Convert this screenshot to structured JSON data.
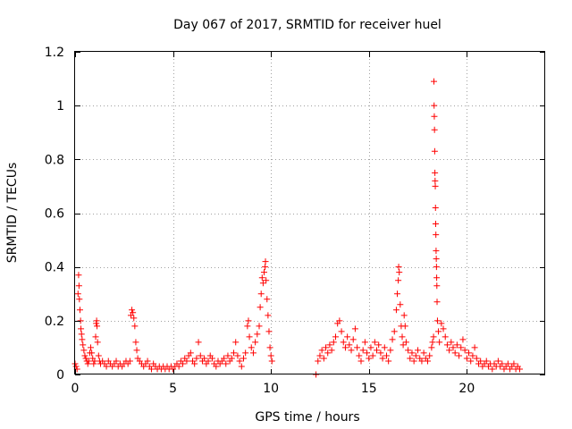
{
  "chart_data": {
    "type": "scatter",
    "title": "Day 067 of 2017, SRMTID for receiver huel",
    "xlabel": "GPS time / hours",
    "ylabel": "SRMTID / TECUs",
    "xlim": [
      0,
      24
    ],
    "ylim": [
      0,
      1.2
    ],
    "xticks": [
      0,
      5,
      10,
      15,
      20
    ],
    "yticks": [
      0,
      0.2,
      0.4,
      0.6,
      0.8,
      1,
      1.2
    ],
    "xtick_labels": [
      "0",
      "5",
      "10",
      "15",
      "20"
    ],
    "ytick_labels": [
      "0",
      "0.2",
      "0.4",
      "0.6",
      "0.8",
      "1",
      "1.2"
    ],
    "grid": true,
    "marker": "plus",
    "series_color": "#ff0000",
    "points": [
      [
        0.0,
        0.04
      ],
      [
        0.05,
        0.03
      ],
      [
        0.1,
        0.02
      ],
      [
        0.15,
        0.3
      ],
      [
        0.18,
        0.37
      ],
      [
        0.2,
        0.33
      ],
      [
        0.22,
        0.28
      ],
      [
        0.25,
        0.24
      ],
      [
        0.28,
        0.2
      ],
      [
        0.3,
        0.17
      ],
      [
        0.33,
        0.15
      ],
      [
        0.36,
        0.13
      ],
      [
        0.4,
        0.11
      ],
      [
        0.45,
        0.09
      ],
      [
        0.5,
        0.07
      ],
      [
        0.55,
        0.06
      ],
      [
        0.6,
        0.05
      ],
      [
        0.65,
        0.04
      ],
      [
        0.7,
        0.05
      ],
      [
        0.75,
        0.08
      ],
      [
        0.8,
        0.1
      ],
      [
        0.85,
        0.08
      ],
      [
        0.9,
        0.06
      ],
      [
        0.95,
        0.04
      ],
      [
        1.0,
        0.05
      ],
      [
        1.05,
        0.14
      ],
      [
        1.08,
        0.19
      ],
      [
        1.1,
        0.2
      ],
      [
        1.12,
        0.18
      ],
      [
        1.15,
        0.12
      ],
      [
        1.2,
        0.07
      ],
      [
        1.25,
        0.05
      ],
      [
        1.3,
        0.04
      ],
      [
        1.4,
        0.05
      ],
      [
        1.5,
        0.04
      ],
      [
        1.6,
        0.03
      ],
      [
        1.7,
        0.05
      ],
      [
        1.8,
        0.04
      ],
      [
        1.9,
        0.03
      ],
      [
        2.0,
        0.04
      ],
      [
        2.1,
        0.05
      ],
      [
        2.2,
        0.03
      ],
      [
        2.3,
        0.04
      ],
      [
        2.4,
        0.03
      ],
      [
        2.5,
        0.04
      ],
      [
        2.6,
        0.05
      ],
      [
        2.7,
        0.04
      ],
      [
        2.8,
        0.05
      ],
      [
        2.85,
        0.22
      ],
      [
        2.9,
        0.24
      ],
      [
        2.95,
        0.23
      ],
      [
        3.0,
        0.21
      ],
      [
        3.05,
        0.18
      ],
      [
        3.1,
        0.12
      ],
      [
        3.15,
        0.09
      ],
      [
        3.2,
        0.06
      ],
      [
        3.3,
        0.05
      ],
      [
        3.4,
        0.04
      ],
      [
        3.5,
        0.03
      ],
      [
        3.6,
        0.04
      ],
      [
        3.7,
        0.05
      ],
      [
        3.8,
        0.03
      ],
      [
        3.9,
        0.02
      ],
      [
        4.0,
        0.04
      ],
      [
        4.1,
        0.03
      ],
      [
        4.2,
        0.02
      ],
      [
        4.3,
        0.03
      ],
      [
        4.4,
        0.02
      ],
      [
        4.5,
        0.03
      ],
      [
        4.6,
        0.02
      ],
      [
        4.7,
        0.03
      ],
      [
        4.8,
        0.02
      ],
      [
        4.9,
        0.03
      ],
      [
        5.0,
        0.02
      ],
      [
        5.1,
        0.03
      ],
      [
        5.2,
        0.04
      ],
      [
        5.3,
        0.03
      ],
      [
        5.4,
        0.05
      ],
      [
        5.5,
        0.04
      ],
      [
        5.6,
        0.06
      ],
      [
        5.7,
        0.05
      ],
      [
        5.8,
        0.07
      ],
      [
        5.9,
        0.08
      ],
      [
        6.0,
        0.05
      ],
      [
        6.1,
        0.04
      ],
      [
        6.2,
        0.06
      ],
      [
        6.3,
        0.12
      ],
      [
        6.4,
        0.07
      ],
      [
        6.5,
        0.05
      ],
      [
        6.6,
        0.06
      ],
      [
        6.7,
        0.04
      ],
      [
        6.8,
        0.05
      ],
      [
        6.9,
        0.07
      ],
      [
        7.0,
        0.06
      ],
      [
        7.1,
        0.04
      ],
      [
        7.2,
        0.03
      ],
      [
        7.3,
        0.05
      ],
      [
        7.4,
        0.04
      ],
      [
        7.5,
        0.05
      ],
      [
        7.6,
        0.06
      ],
      [
        7.7,
        0.04
      ],
      [
        7.8,
        0.07
      ],
      [
        7.9,
        0.05
      ],
      [
        8.0,
        0.06
      ],
      [
        8.1,
        0.08
      ],
      [
        8.2,
        0.12
      ],
      [
        8.3,
        0.07
      ],
      [
        8.4,
        0.05
      ],
      [
        8.5,
        0.03
      ],
      [
        8.6,
        0.06
      ],
      [
        8.7,
        0.08
      ],
      [
        8.8,
        0.18
      ],
      [
        8.85,
        0.2
      ],
      [
        8.9,
        0.14
      ],
      [
        9.0,
        0.1
      ],
      [
        9.1,
        0.08
      ],
      [
        9.2,
        0.12
      ],
      [
        9.3,
        0.15
      ],
      [
        9.4,
        0.18
      ],
      [
        9.45,
        0.25
      ],
      [
        9.5,
        0.3
      ],
      [
        9.55,
        0.36
      ],
      [
        9.6,
        0.34
      ],
      [
        9.65,
        0.38
      ],
      [
        9.7,
        0.4
      ],
      [
        9.72,
        0.42
      ],
      [
        9.75,
        0.35
      ],
      [
        9.8,
        0.28
      ],
      [
        9.85,
        0.22
      ],
      [
        9.9,
        0.16
      ],
      [
        9.95,
        0.1
      ],
      [
        10.0,
        0.07
      ],
      [
        10.05,
        0.05
      ],
      [
        12.3,
        0.0
      ],
      [
        12.4,
        0.05
      ],
      [
        12.5,
        0.07
      ],
      [
        12.6,
        0.09
      ],
      [
        12.7,
        0.06
      ],
      [
        12.8,
        0.1
      ],
      [
        12.9,
        0.08
      ],
      [
        13.0,
        0.11
      ],
      [
        13.1,
        0.09
      ],
      [
        13.2,
        0.12
      ],
      [
        13.3,
        0.14
      ],
      [
        13.4,
        0.19
      ],
      [
        13.5,
        0.2
      ],
      [
        13.6,
        0.16
      ],
      [
        13.7,
        0.12
      ],
      [
        13.8,
        0.1
      ],
      [
        13.9,
        0.14
      ],
      [
        14.0,
        0.11
      ],
      [
        14.1,
        0.09
      ],
      [
        14.2,
        0.13
      ],
      [
        14.3,
        0.17
      ],
      [
        14.4,
        0.1
      ],
      [
        14.5,
        0.07
      ],
      [
        14.6,
        0.05
      ],
      [
        14.7,
        0.09
      ],
      [
        14.8,
        0.12
      ],
      [
        14.9,
        0.08
      ],
      [
        15.0,
        0.06
      ],
      [
        15.1,
        0.1
      ],
      [
        15.2,
        0.07
      ],
      [
        15.3,
        0.12
      ],
      [
        15.4,
        0.09
      ],
      [
        15.5,
        0.11
      ],
      [
        15.6,
        0.08
      ],
      [
        15.7,
        0.06
      ],
      [
        15.8,
        0.1
      ],
      [
        15.9,
        0.07
      ],
      [
        16.0,
        0.05
      ],
      [
        16.1,
        0.09
      ],
      [
        16.2,
        0.13
      ],
      [
        16.3,
        0.16
      ],
      [
        16.4,
        0.24
      ],
      [
        16.45,
        0.3
      ],
      [
        16.5,
        0.35
      ],
      [
        16.52,
        0.4
      ],
      [
        16.55,
        0.38
      ],
      [
        16.6,
        0.26
      ],
      [
        16.65,
        0.18
      ],
      [
        16.7,
        0.14
      ],
      [
        16.75,
        0.11
      ],
      [
        16.8,
        0.22
      ],
      [
        16.85,
        0.18
      ],
      [
        16.9,
        0.12
      ],
      [
        17.0,
        0.09
      ],
      [
        17.1,
        0.06
      ],
      [
        17.2,
        0.08
      ],
      [
        17.3,
        0.05
      ],
      [
        17.4,
        0.07
      ],
      [
        17.5,
        0.09
      ],
      [
        17.6,
        0.06
      ],
      [
        17.7,
        0.05
      ],
      [
        17.8,
        0.08
      ],
      [
        17.9,
        0.06
      ],
      [
        18.0,
        0.05
      ],
      [
        18.1,
        0.07
      ],
      [
        18.2,
        0.1
      ],
      [
        18.25,
        0.12
      ],
      [
        18.3,
        0.14
      ],
      [
        18.32,
        1.09
      ],
      [
        18.33,
        1.0
      ],
      [
        18.34,
        0.96
      ],
      [
        18.35,
        0.91
      ],
      [
        18.36,
        0.83
      ],
      [
        18.37,
        0.75
      ],
      [
        18.38,
        0.72
      ],
      [
        18.39,
        0.7
      ],
      [
        18.4,
        0.62
      ],
      [
        18.41,
        0.56
      ],
      [
        18.42,
        0.52
      ],
      [
        18.43,
        0.46
      ],
      [
        18.44,
        0.43
      ],
      [
        18.45,
        0.4
      ],
      [
        18.46,
        0.36
      ],
      [
        18.47,
        0.33
      ],
      [
        18.48,
        0.27
      ],
      [
        18.5,
        0.2
      ],
      [
        18.55,
        0.16
      ],
      [
        18.6,
        0.12
      ],
      [
        18.7,
        0.19
      ],
      [
        18.8,
        0.17
      ],
      [
        18.9,
        0.14
      ],
      [
        19.0,
        0.11
      ],
      [
        19.1,
        0.09
      ],
      [
        19.2,
        0.12
      ],
      [
        19.3,
        0.1
      ],
      [
        19.4,
        0.08
      ],
      [
        19.5,
        0.11
      ],
      [
        19.6,
        0.07
      ],
      [
        19.7,
        0.1
      ],
      [
        19.8,
        0.13
      ],
      [
        19.9,
        0.09
      ],
      [
        20.0,
        0.06
      ],
      [
        20.1,
        0.08
      ],
      [
        20.2,
        0.05
      ],
      [
        20.3,
        0.07
      ],
      [
        20.4,
        0.1
      ],
      [
        20.5,
        0.06
      ],
      [
        20.6,
        0.04
      ],
      [
        20.7,
        0.05
      ],
      [
        20.8,
        0.03
      ],
      [
        20.9,
        0.04
      ],
      [
        21.0,
        0.05
      ],
      [
        21.1,
        0.03
      ],
      [
        21.2,
        0.04
      ],
      [
        21.3,
        0.02
      ],
      [
        21.4,
        0.04
      ],
      [
        21.5,
        0.03
      ],
      [
        21.6,
        0.05
      ],
      [
        21.7,
        0.03
      ],
      [
        21.8,
        0.04
      ],
      [
        21.9,
        0.02
      ],
      [
        22.0,
        0.03
      ],
      [
        22.1,
        0.04
      ],
      [
        22.2,
        0.02
      ],
      [
        22.3,
        0.03
      ],
      [
        22.4,
        0.04
      ],
      [
        22.5,
        0.02
      ],
      [
        22.6,
        0.03
      ],
      [
        22.7,
        0.02
      ]
    ]
  }
}
